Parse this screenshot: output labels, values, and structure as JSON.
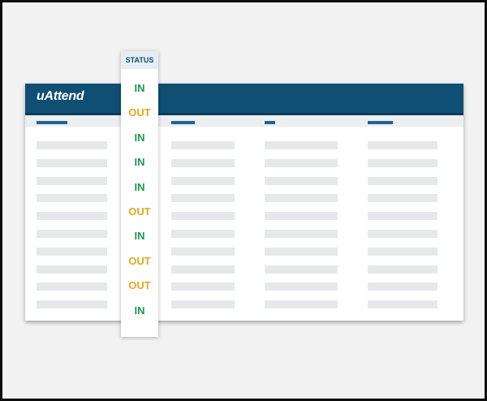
{
  "app": {
    "logo_text": "uAttend"
  },
  "status_column": {
    "header": "STATUS",
    "rows": [
      {
        "value": "IN",
        "kind": "in"
      },
      {
        "value": "OUT",
        "kind": "out"
      },
      {
        "value": "IN",
        "kind": "in"
      },
      {
        "value": "IN",
        "kind": "in"
      },
      {
        "value": "IN",
        "kind": "in"
      },
      {
        "value": "OUT",
        "kind": "out"
      },
      {
        "value": "IN",
        "kind": "in"
      },
      {
        "value": "OUT",
        "kind": "out"
      },
      {
        "value": "OUT",
        "kind": "out"
      },
      {
        "value": "IN",
        "kind": "in"
      }
    ]
  },
  "colors": {
    "brand": "#0f4f74",
    "status_in": "#1c9a52",
    "status_out": "#e5a820"
  }
}
